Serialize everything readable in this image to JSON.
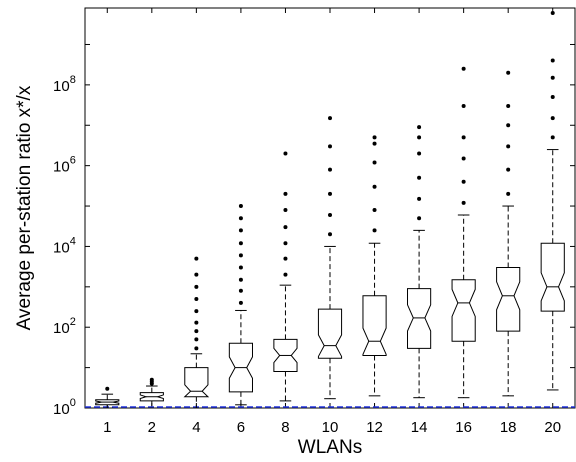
{
  "chart_data": {
    "type": "boxplot",
    "title": "",
    "xlabel": "WLANs",
    "ylabel": "Average per-station ratio x*/x",
    "y_scale": "log",
    "ylim": [
      1,
      8000000000
    ],
    "categories": [
      "1",
      "2",
      "4",
      "6",
      "8",
      "10",
      "12",
      "14",
      "16",
      "18",
      "20"
    ],
    "ytick_labels": [
      {
        "base": "10",
        "exp": "0",
        "value": 1
      },
      {
        "base": "10",
        "exp": "2",
        "value": 100
      },
      {
        "base": "10",
        "exp": "4",
        "value": 10000
      },
      {
        "base": "10",
        "exp": "6",
        "value": 1000000
      },
      {
        "base": "10",
        "exp": "8",
        "value": 100000000
      }
    ],
    "boxes": [
      {
        "category": "1",
        "q1": 1.2,
        "median": 1.4,
        "q3": 1.6,
        "whisker_low": 1.0,
        "whisker_high": 2.2,
        "outliers": [
          3.0
        ]
      },
      {
        "category": "2",
        "q1": 1.5,
        "median": 1.9,
        "q3": 2.4,
        "whisker_low": 1.0,
        "whisker_high": 3.5,
        "outliers": [
          4.0,
          4.5,
          5.0
        ]
      },
      {
        "category": "4",
        "q1": 1.9,
        "median": 2.6,
        "q3": 10,
        "whisker_low": 1.0,
        "whisker_high": 22,
        "outliers": [
          30,
          50,
          80,
          130,
          250,
          500,
          1000,
          2000,
          5000
        ]
      },
      {
        "category": "6",
        "q1": 2.5,
        "median": 10,
        "q3": 40,
        "whisker_low": 1.2,
        "whisker_high": 260,
        "outliers": [
          400,
          800,
          1500,
          3000,
          6000,
          12000,
          25000,
          50000,
          100000
        ]
      },
      {
        "category": "8",
        "q1": 8,
        "median": 20,
        "q3": 50,
        "whisker_low": 1.5,
        "whisker_high": 1100,
        "outliers": [
          2000,
          5000,
          12000,
          30000,
          80000,
          200000,
          2000000
        ]
      },
      {
        "category": "10",
        "q1": 17,
        "median": 35,
        "q3": 280,
        "whisker_low": 1.7,
        "whisker_high": 10000,
        "outliers": [
          20000,
          60000,
          200000,
          800000,
          3000000,
          15000000
        ]
      },
      {
        "category": "12",
        "q1": 20,
        "median": 45,
        "q3": 600,
        "whisker_low": 2.0,
        "whisker_high": 12000,
        "outliers": [
          25000,
          80000,
          300000,
          1200000,
          3500000,
          5000000
        ]
      },
      {
        "category": "14",
        "q1": 30,
        "median": 170,
        "q3": 900,
        "whisker_low": 1.8,
        "whisker_high": 25000,
        "outliers": [
          50000,
          150000,
          500000,
          2000000,
          5000000,
          9000000
        ]
      },
      {
        "category": "16",
        "q1": 45,
        "median": 400,
        "q3": 1500,
        "whisker_low": 1.8,
        "whisker_high": 60000,
        "outliers": [
          120000,
          400000,
          1500000,
          5000000,
          30000000,
          250000000
        ]
      },
      {
        "category": "18",
        "q1": 80,
        "median": 600,
        "q3": 3000,
        "whisker_low": 2.0,
        "whisker_high": 100000,
        "outliers": [
          200000,
          800000,
          3000000,
          10000000,
          30000000,
          200000000
        ]
      },
      {
        "category": "20",
        "q1": 250,
        "median": 1000,
        "q3": 12000,
        "whisker_low": 2.8,
        "whisker_high": 2500000,
        "outliers": [
          5000000,
          15000000,
          50000000,
          150000000,
          400000000,
          6000000000
        ]
      }
    ],
    "grid": false,
    "reference_line": {
      "value": 1,
      "color": "#2233dd"
    }
  }
}
